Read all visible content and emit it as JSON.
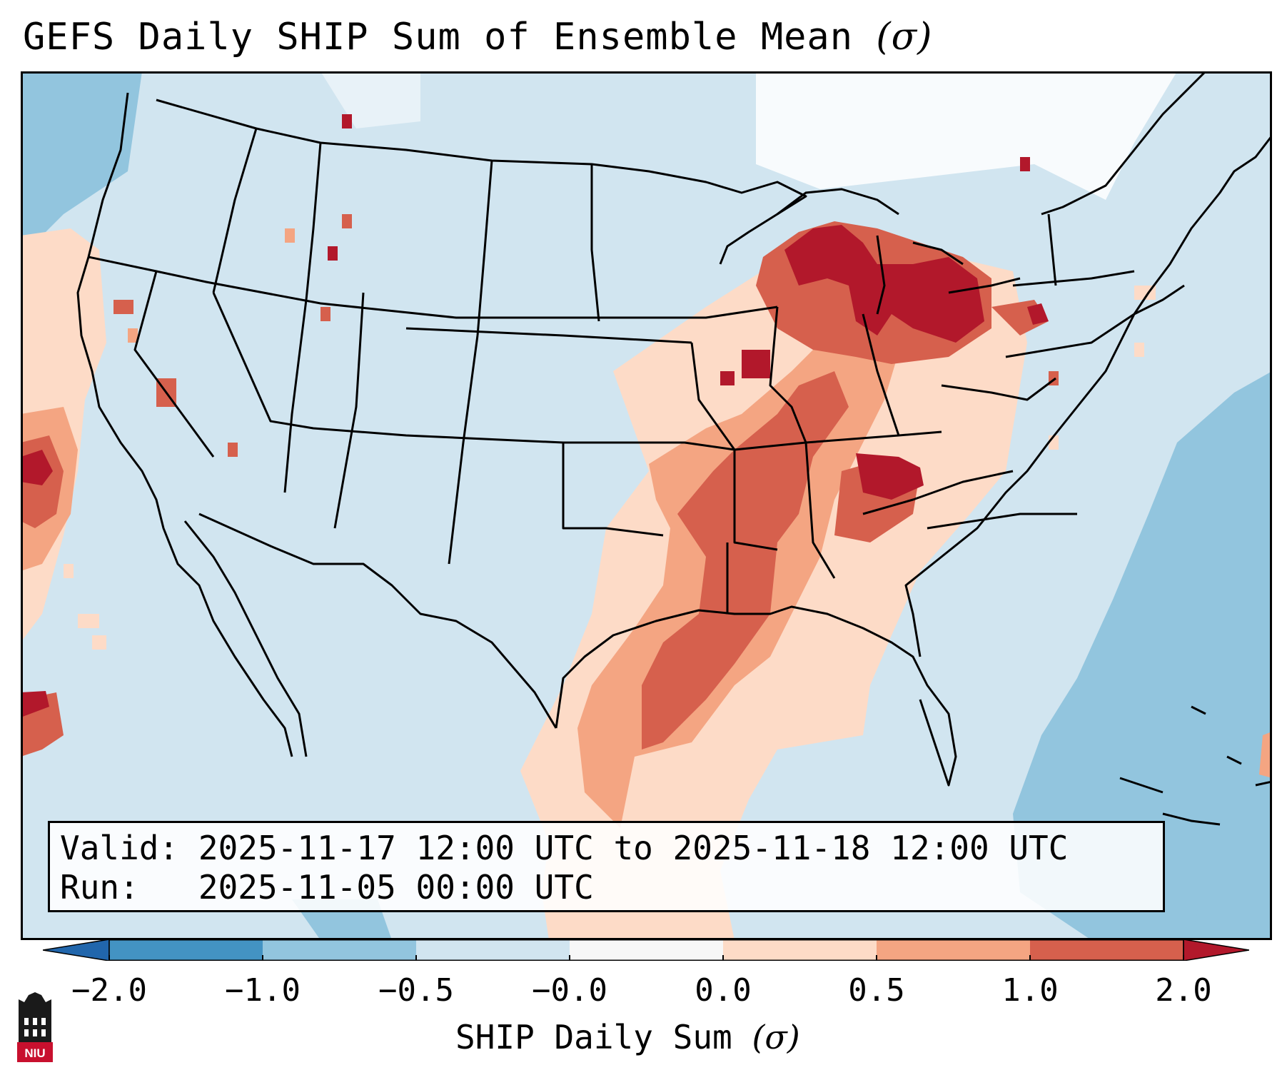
{
  "title": "GEFS Daily SHIP Sum of Ensemble Mean",
  "title_symbol": "(σ)",
  "info": {
    "valid_label": "Valid:",
    "valid_value": "2025-11-17 12:00 UTC to 2025-11-18 12:00 UTC",
    "run_label": "Run:",
    "run_value": "2025-11-05 00:00 UTC"
  },
  "colorbar": {
    "label": "SHIP Daily Sum",
    "label_symbol": "(σ)",
    "ticks": [
      "−2.0",
      "−1.0",
      "−0.5",
      "−0.0",
      "0.0",
      "0.5",
      "1.0",
      "2.0"
    ],
    "colors": [
      "#4393c3",
      "#92c5de",
      "#d1e5f0",
      "#f7f7f7",
      "#fddbc7",
      "#f4a582",
      "#d6604d",
      "#b2182b"
    ],
    "extend_low_color": "#2166ac",
    "extend_high_color": "#b2182b"
  },
  "map_colors": {
    "ocean_light": "#d1e5f0",
    "ocean_mid": "#92c5de",
    "land": "#d1e5f0",
    "none": "#f7f7f7",
    "pos_low": "#fddbc7",
    "pos_mid": "#f4a582",
    "pos_high": "#d6604d",
    "pos_max": "#b2182b",
    "border": "#000000"
  },
  "logo_text": "NIU"
}
